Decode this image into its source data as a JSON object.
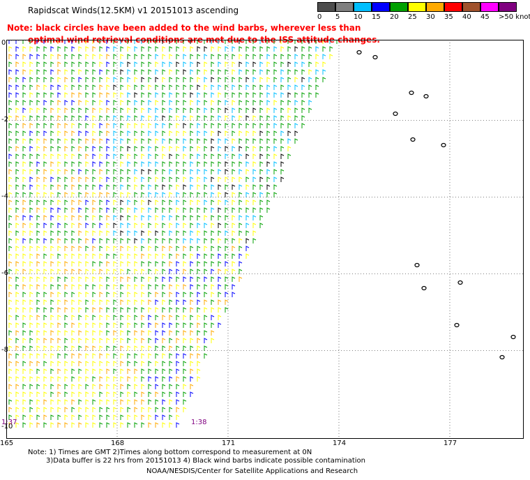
{
  "title": "Rapidscat Winds(12.5KM) v1 20151013 ascending",
  "note": {
    "line1": "Note: black circles have been added to the wind barbs, wherever less than",
    "line2": "optimal wind retrieval conditions are met due to the ISS attitude changes."
  },
  "legend": {
    "labels": [
      "0",
      "5",
      "10",
      "15",
      "20",
      "25",
      "30",
      "35",
      "40",
      "45",
      ">50 knots"
    ],
    "colors": [
      "#4d4d4d",
      "#7f7f7f",
      "#00bfff",
      "#0000ff",
      "#00a000",
      "#ffff00",
      "#ffaa00",
      "#ff0000",
      "#a0522d",
      "#ff00ff",
      "#800080"
    ]
  },
  "axes": {
    "lat_labels": [
      "0",
      "-2",
      "-4",
      "-6",
      "-8",
      "-10"
    ],
    "lon_labels": [
      "165",
      "168",
      "171",
      "174",
      "177"
    ]
  },
  "times": [
    "1:37",
    "1:38"
  ],
  "footer": {
    "line1": "Note: 1) Times are GMT 2)Times along bottom correspond to measurement at 0N",
    "line2": "3)Data buffer is 22 hrs from 20151013 4) Black wind barbs indicate possible contamination",
    "credit": "NOAA/NESDIS/Center for Satellite Applications and Research"
  },
  "map_data": {
    "lon_range": [
      165,
      179
    ],
    "lat_range": [
      -10.3,
      0.1
    ],
    "grid_lons": [
      168,
      171,
      174,
      177
    ],
    "grid_lats": [
      -2,
      -4,
      -6,
      -8
    ]
  }
}
